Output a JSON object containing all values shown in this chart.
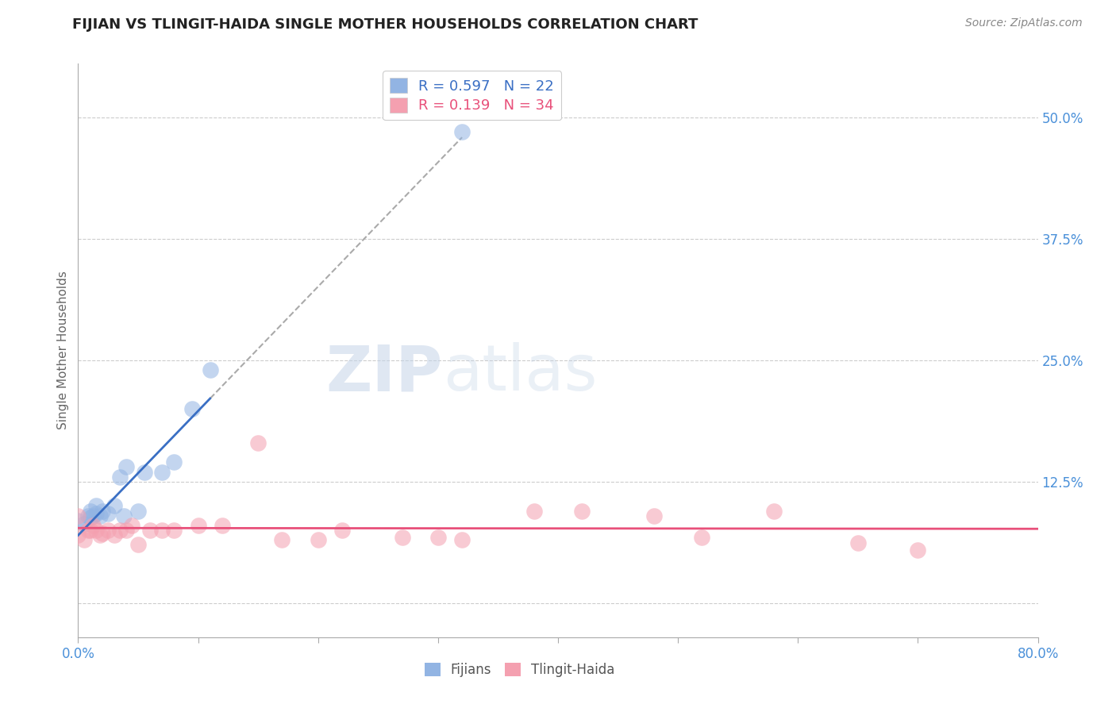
{
  "title": "FIJIAN VS TLINGIT-HAIDA SINGLE MOTHER HOUSEHOLDS CORRELATION CHART",
  "source": "Source: ZipAtlas.com",
  "ylabel": "Single Mother Households",
  "xlim": [
    0.0,
    0.8
  ],
  "ylim": [
    -0.035,
    0.555
  ],
  "xticks": [
    0.0,
    0.1,
    0.2,
    0.3,
    0.4,
    0.5,
    0.6,
    0.7,
    0.8
  ],
  "yticks": [
    0.0,
    0.125,
    0.25,
    0.375,
    0.5
  ],
  "fijian_color": "#92b4e3",
  "tlingit_color": "#f4a0b0",
  "fijian_line_color": "#3a6fc4",
  "tlingit_line_color": "#e8507a",
  "fijian_R": 0.597,
  "fijian_N": 22,
  "tlingit_R": 0.139,
  "tlingit_N": 34,
  "fijian_x": [
    0.0,
    0.005,
    0.008,
    0.01,
    0.01,
    0.012,
    0.015,
    0.015,
    0.018,
    0.02,
    0.025,
    0.03,
    0.035,
    0.038,
    0.04,
    0.05,
    0.055,
    0.07,
    0.08,
    0.095,
    0.11,
    0.32
  ],
  "fijian_y": [
    0.085,
    0.082,
    0.09,
    0.088,
    0.095,
    0.09,
    0.092,
    0.1,
    0.09,
    0.095,
    0.092,
    0.1,
    0.13,
    0.09,
    0.14,
    0.095,
    0.135,
    0.135,
    0.145,
    0.2,
    0.24,
    0.485
  ],
  "tlingit_x": [
    0.0,
    0.0,
    0.005,
    0.008,
    0.01,
    0.012,
    0.015,
    0.018,
    0.02,
    0.025,
    0.03,
    0.035,
    0.04,
    0.045,
    0.05,
    0.06,
    0.07,
    0.08,
    0.1,
    0.12,
    0.15,
    0.17,
    0.2,
    0.22,
    0.27,
    0.3,
    0.32,
    0.38,
    0.42,
    0.48,
    0.52,
    0.58,
    0.65,
    0.7
  ],
  "tlingit_y": [
    0.07,
    0.09,
    0.065,
    0.075,
    0.075,
    0.08,
    0.075,
    0.07,
    0.072,
    0.075,
    0.07,
    0.075,
    0.075,
    0.08,
    0.06,
    0.075,
    0.075,
    0.075,
    0.08,
    0.08,
    0.165,
    0.065,
    0.065,
    0.075,
    0.068,
    0.068,
    0.065,
    0.095,
    0.095,
    0.09,
    0.068,
    0.095,
    0.062,
    0.055
  ],
  "watermark_zip": "ZIP",
  "watermark_atlas": "atlas",
  "background_color": "#ffffff",
  "grid_color": "#cccccc",
  "tick_color": "#4a90d9",
  "ylabel_color": "#666666",
  "title_color": "#222222",
  "source_color": "#888888"
}
